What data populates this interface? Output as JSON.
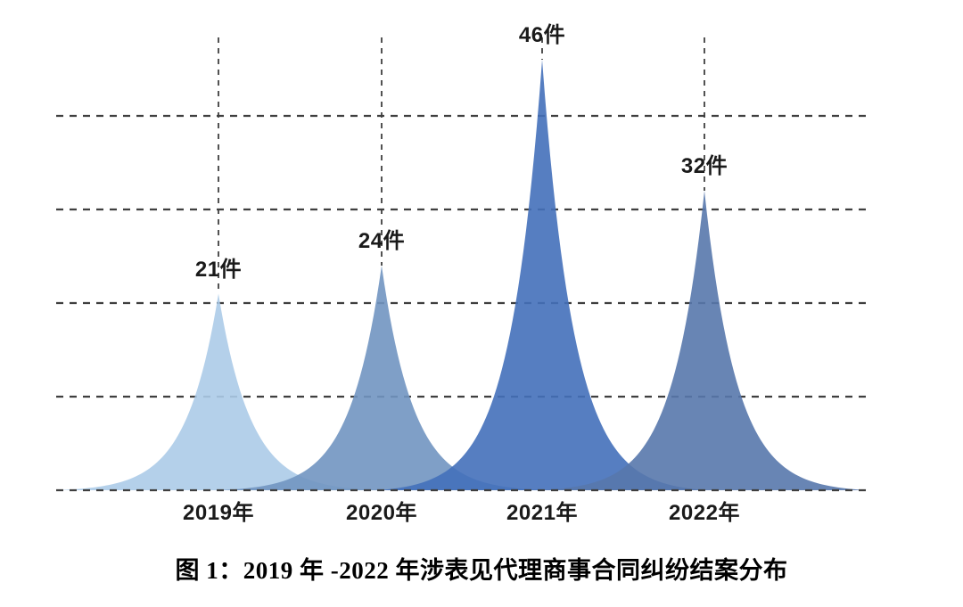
{
  "chart_data": {
    "type": "area",
    "title": "",
    "caption": "图 1：2019 年 -2022 年涉表见代理商事合同纠纷结案分布",
    "unit": "件",
    "categories": [
      "2019年",
      "2020年",
      "2021年",
      "2022年"
    ],
    "values": [
      21,
      24,
      46,
      32
    ],
    "value_labels": [
      "21件",
      "24件",
      "46件",
      "32件"
    ],
    "points": [
      {
        "category": "2019年",
        "value": 21,
        "value_label": "21件",
        "color": "#accbe8"
      },
      {
        "category": "2020年",
        "value": 24,
        "value_label": "24件",
        "color": "#7195c1"
      },
      {
        "category": "2021年",
        "value": 46,
        "value_label": "46件",
        "color": "#4470ba"
      },
      {
        "category": "2022年",
        "value": 32,
        "value_label": "32件",
        "color": "#5878ac"
      }
    ],
    "ylim": [
      0,
      50
    ],
    "grid_interval": 10,
    "grid": "horizontal-dashed-plus-peak-drop-lines",
    "legend": "none",
    "gridline_color": "#3f3f3f",
    "text_color": "#1a1a1a",
    "background_color": "#ffffff"
  }
}
